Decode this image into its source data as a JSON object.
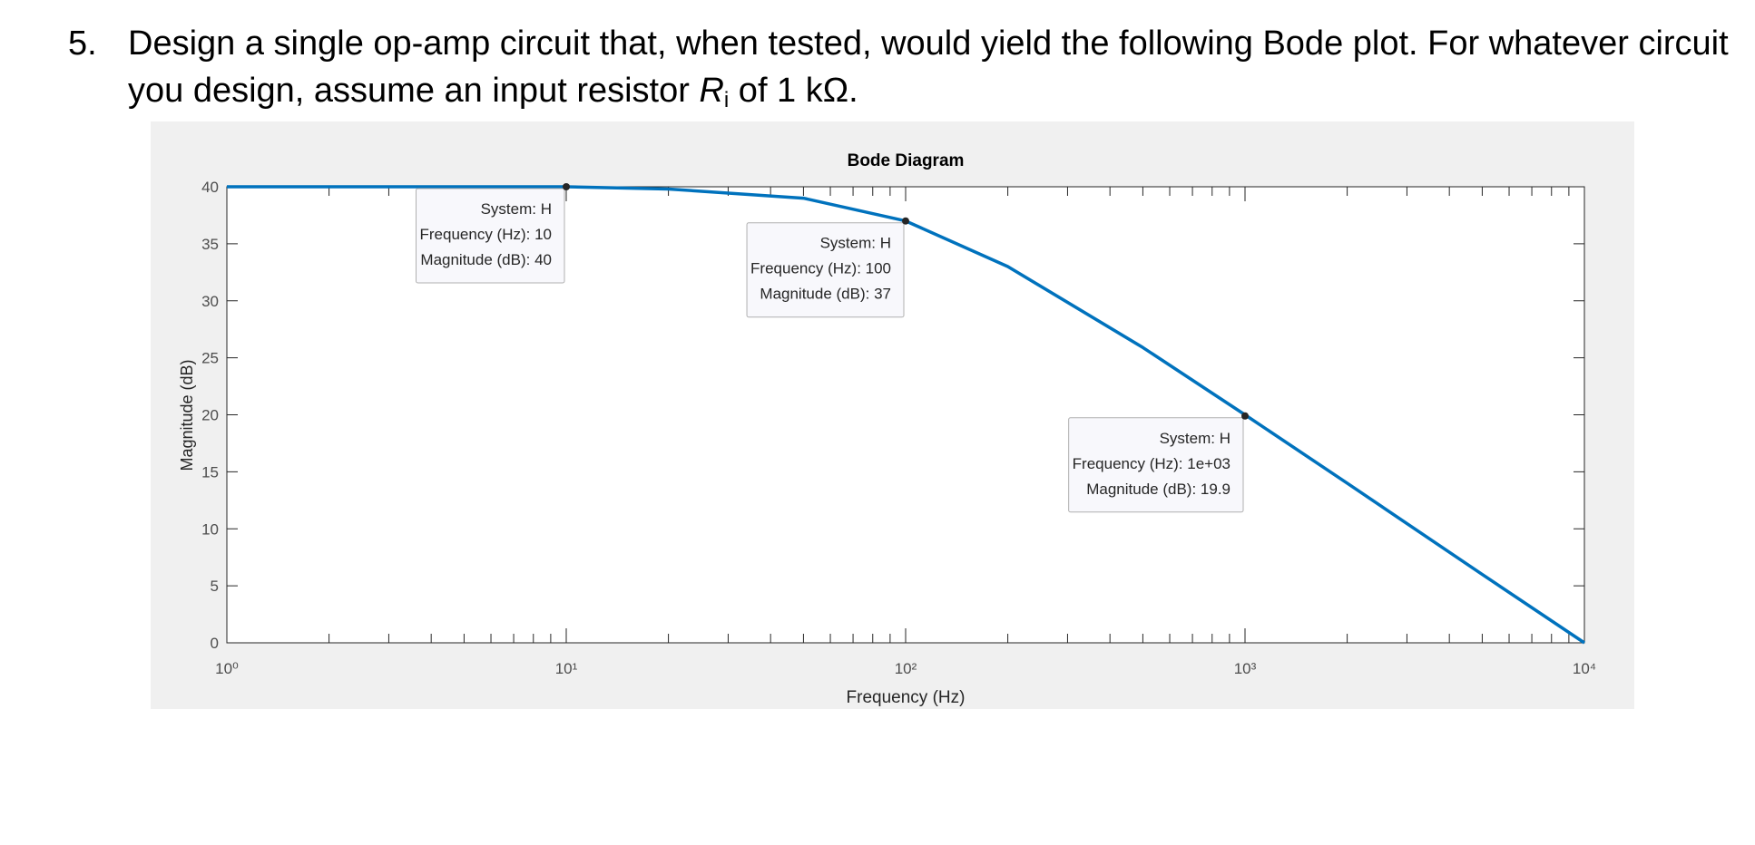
{
  "question": {
    "number": "5.",
    "text_before": "Design a single op-amp circuit that, when tested, would yield the following Bode plot. For whatever circuit you design, assume an input resistor ",
    "symbol": "R",
    "subscript": "i",
    "text_after": " of 1 kΩ."
  },
  "chart_data": {
    "type": "line",
    "title": "Bode Diagram",
    "x_label": "Frequency  (Hz)",
    "y_label": "Magnitude (dB)",
    "x_scale": "log",
    "x": [
      1,
      2,
      5,
      10,
      20,
      50,
      100,
      200,
      500,
      1000,
      2000,
      5000,
      10000
    ],
    "series": [
      {
        "name": "H",
        "color": "#0072bd",
        "values": [
          40,
          40,
          40,
          40,
          39.8,
          39,
          37,
          33,
          25.9,
          20,
          14,
          6,
          0
        ]
      }
    ],
    "xlim": [
      1,
      10000
    ],
    "xticks": [
      {
        "value": 1,
        "label": "10⁰"
      },
      {
        "value": 10,
        "label": "10¹"
      },
      {
        "value": 100,
        "label": "10²"
      },
      {
        "value": 1000,
        "label": "10³"
      },
      {
        "value": 10000,
        "label": "10⁴"
      }
    ],
    "ylim": [
      0,
      40
    ],
    "yticks": [
      0,
      5,
      10,
      15,
      20,
      25,
      30,
      35,
      40
    ],
    "annotations": [
      {
        "x": 10,
        "y": 40,
        "lines": [
          "System: H",
          "Frequency (Hz): 10",
          "Magnitude (dB): 40"
        ]
      },
      {
        "x": 100,
        "y": 37,
        "lines": [
          "System: H",
          "Frequency (Hz): 100",
          "Magnitude (dB): 37"
        ]
      },
      {
        "x": 1000,
        "y": 19.9,
        "lines": [
          "System: H",
          "Frequency (Hz): 1e+03",
          "Magnitude (dB): 19.9"
        ]
      }
    ]
  }
}
